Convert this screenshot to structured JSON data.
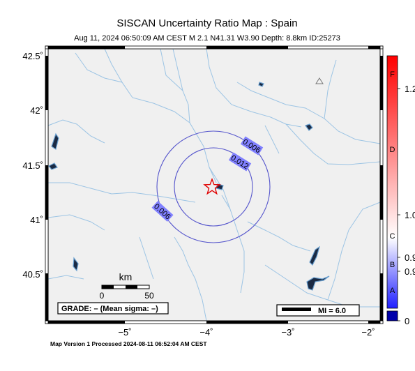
{
  "header": {
    "title": "SISCAN Uncertainty Ratio Map : Spain",
    "subtitle": "Aug 11, 2024 06:50:09 AM CEST   M 2.1   N41.31 W3.90   Depth: 8.8km   ID:25273"
  },
  "axes": {
    "lat_labels": [
      "42.5˚",
      "42˚",
      "41.5˚",
      "41˚",
      "40.5˚"
    ],
    "lon_labels": [
      "−5˚",
      "−4˚",
      "−3˚",
      "−2˚"
    ]
  },
  "contours": {
    "outer_label": "0.006",
    "inner_label": "0.012",
    "outer_label_lower": "0.006"
  },
  "scale_bar": {
    "unit": "km",
    "ticks": [
      "0",
      "50"
    ]
  },
  "grade_box": {
    "text": "GRADE: – (Mean sigma: –)"
  },
  "mi_legend": {
    "text": "MI = 6.0"
  },
  "colorbar": {
    "grades": [
      "F",
      "D",
      "C",
      "B",
      "A"
    ],
    "values": [
      "1.2",
      "1.0",
      "0.9",
      "0.9",
      "0"
    ],
    "colors": {
      "top": "#ff0000",
      "mid": "#ffffff",
      "bottom": "#0000ff",
      "min_box": "#0000aa"
    }
  },
  "footer": {
    "text": "Map Version 1 Processed 2024-08-11 06:52:04 AM CEST"
  },
  "colors": {
    "land": "#f0f0f0",
    "river": "#9cc4e4",
    "contour": "#5555cc",
    "label_bg": "#8080ff",
    "star": "#e00000"
  }
}
